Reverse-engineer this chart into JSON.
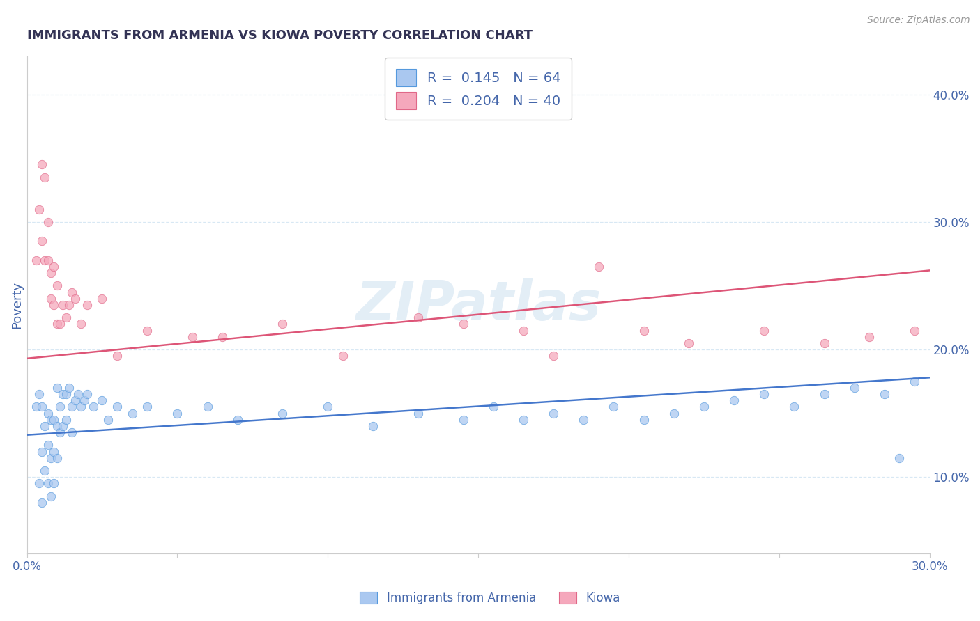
{
  "title": "IMMIGRANTS FROM ARMENIA VS KIOWA POVERTY CORRELATION CHART",
  "source_text": "Source: ZipAtlas.com",
  "ylabel": "Poverty",
  "xlim": [
    0.0,
    0.3
  ],
  "ylim": [
    0.04,
    0.43
  ],
  "x_ticks": [
    0.0,
    0.05,
    0.1,
    0.15,
    0.2,
    0.25,
    0.3
  ],
  "x_tick_labels": [
    "0.0%",
    "",
    "",
    "",
    "",
    "",
    "30.0%"
  ],
  "y_ticks_right": [
    0.1,
    0.2,
    0.3,
    0.4
  ],
  "y_tick_labels_right": [
    "10.0%",
    "20.0%",
    "30.0%",
    "40.0%"
  ],
  "watermark": "ZIPatlas",
  "legend_r_blue": "R =  0.145",
  "legend_n_blue": "N = 64",
  "legend_r_pink": "R =  0.204",
  "legend_n_pink": "N = 40",
  "blue_color": "#aac8f0",
  "pink_color": "#f5a8bc",
  "blue_edge_color": "#5599dd",
  "pink_edge_color": "#e06888",
  "blue_line_color": "#4477cc",
  "pink_line_color": "#dd5577",
  "title_color": "#333355",
  "axis_label_color": "#4466aa",
  "tick_color": "#4466aa",
  "grid_color": "#d8e8f4",
  "bg_color": "#ffffff",
  "blue_trend_x": [
    0.0,
    0.3
  ],
  "blue_trend_y": [
    0.133,
    0.178
  ],
  "pink_trend_x": [
    0.0,
    0.3
  ],
  "pink_trend_y": [
    0.193,
    0.262
  ],
  "blue_scatter_x": [
    0.003,
    0.004,
    0.004,
    0.005,
    0.005,
    0.005,
    0.006,
    0.006,
    0.007,
    0.007,
    0.007,
    0.008,
    0.008,
    0.008,
    0.009,
    0.009,
    0.009,
    0.01,
    0.01,
    0.01,
    0.011,
    0.011,
    0.012,
    0.012,
    0.013,
    0.013,
    0.014,
    0.015,
    0.015,
    0.016,
    0.017,
    0.018,
    0.019,
    0.02,
    0.022,
    0.025,
    0.027,
    0.03,
    0.035,
    0.04,
    0.05,
    0.06,
    0.07,
    0.085,
    0.1,
    0.115,
    0.13,
    0.145,
    0.155,
    0.165,
    0.175,
    0.185,
    0.195,
    0.205,
    0.215,
    0.225,
    0.235,
    0.245,
    0.255,
    0.265,
    0.275,
    0.285,
    0.29,
    0.295
  ],
  "blue_scatter_y": [
    0.155,
    0.165,
    0.095,
    0.155,
    0.12,
    0.08,
    0.14,
    0.105,
    0.15,
    0.125,
    0.095,
    0.145,
    0.115,
    0.085,
    0.145,
    0.12,
    0.095,
    0.17,
    0.14,
    0.115,
    0.155,
    0.135,
    0.165,
    0.14,
    0.165,
    0.145,
    0.17,
    0.155,
    0.135,
    0.16,
    0.165,
    0.155,
    0.16,
    0.165,
    0.155,
    0.16,
    0.145,
    0.155,
    0.15,
    0.155,
    0.15,
    0.155,
    0.145,
    0.15,
    0.155,
    0.14,
    0.15,
    0.145,
    0.155,
    0.145,
    0.15,
    0.145,
    0.155,
    0.145,
    0.15,
    0.155,
    0.16,
    0.165,
    0.155,
    0.165,
    0.17,
    0.165,
    0.115,
    0.175
  ],
  "pink_scatter_x": [
    0.003,
    0.004,
    0.005,
    0.005,
    0.006,
    0.006,
    0.007,
    0.007,
    0.008,
    0.008,
    0.009,
    0.009,
    0.01,
    0.01,
    0.011,
    0.012,
    0.013,
    0.014,
    0.015,
    0.016,
    0.018,
    0.02,
    0.025,
    0.03,
    0.04,
    0.055,
    0.065,
    0.085,
    0.105,
    0.13,
    0.145,
    0.165,
    0.175,
    0.19,
    0.205,
    0.22,
    0.245,
    0.265,
    0.28,
    0.295
  ],
  "pink_scatter_y": [
    0.27,
    0.31,
    0.345,
    0.285,
    0.335,
    0.27,
    0.3,
    0.27,
    0.26,
    0.24,
    0.265,
    0.235,
    0.25,
    0.22,
    0.22,
    0.235,
    0.225,
    0.235,
    0.245,
    0.24,
    0.22,
    0.235,
    0.24,
    0.195,
    0.215,
    0.21,
    0.21,
    0.22,
    0.195,
    0.225,
    0.22,
    0.215,
    0.195,
    0.265,
    0.215,
    0.205,
    0.215,
    0.205,
    0.21,
    0.215
  ],
  "fig_width": 14.06,
  "fig_height": 8.92
}
